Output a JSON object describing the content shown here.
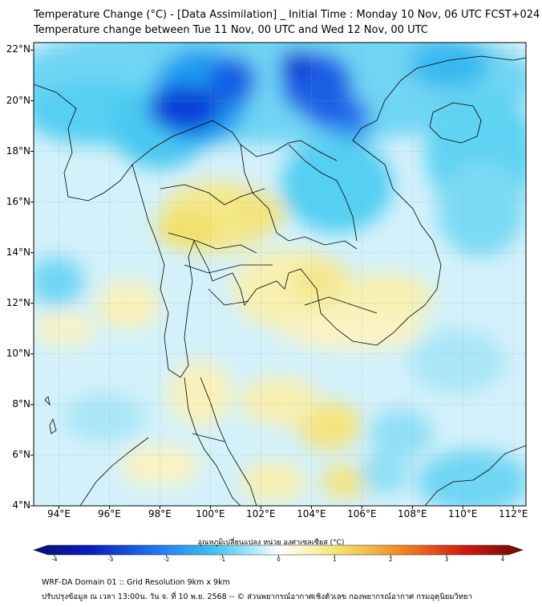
{
  "header": {
    "title_line1": "Temperature Change (°C) - [Data Assimilation] _ Initial Time : Monday 10 Nov, 06 UTC FCST+024",
    "title_line2": "Temperature change between Tue 11 Nov, 00 UTC and Wed 12 Nov, 00 UTC"
  },
  "map": {
    "lon_range": [
      93,
      112.5
    ],
    "lat_range": [
      4,
      22.3
    ],
    "lat_labels": [
      "22°N",
      "20°N",
      "18°N",
      "16°N",
      "14°N",
      "12°N",
      "10°N",
      "8°N",
      "6°N",
      "4°N"
    ],
    "lat_values": [
      22,
      20,
      18,
      16,
      14,
      12,
      10,
      8,
      6,
      4
    ],
    "lon_labels": [
      "94°E",
      "96°E",
      "98°E",
      "100°E",
      "102°E",
      "104°E",
      "106°E",
      "108°E",
      "110°E",
      "112°E"
    ],
    "lon_values": [
      94,
      96,
      98,
      100,
      102,
      104,
      106,
      108,
      110,
      112
    ]
  },
  "colorbar": {
    "title": "อุณหภูมิเปลี่ยนแปลง หน่วย องศาเซลเซียส (°C)",
    "tick_labels": [
      "-4",
      "-3",
      "-2",
      "-1",
      "0",
      "1",
      "2",
      "3",
      "4"
    ],
    "tick_values": [
      -4,
      -3,
      -2,
      -1,
      0,
      1,
      2,
      3,
      4
    ],
    "range": [
      -4,
      4
    ]
  },
  "footer": {
    "line1": "WRF-DA Domain 01 :: Grid Resolution 9km x 9km",
    "line2": "ปรับปรุงข้อมูล ณ เวลา 13:00น. วัน จ. ที่ 10 พ.ย. 2568 -- © ส่วนพยากรณ์อากาศเชิงตัวเลข กองพยากรณ์อากาศ กรมอุตุนิยมวิทยา"
  },
  "colors": {
    "dark_blue": "#0a1fbf",
    "blue": "#1e78f0",
    "cyan": "#3fc4f0",
    "light_cyan": "#a9e6f7",
    "neutral": "#f4fbfd",
    "light_yellow": "#f9f0a8",
    "yellow": "#f2e06a",
    "orange": "#f08a1e",
    "red": "#d11a12",
    "dark_red": "#7a0a06"
  }
}
